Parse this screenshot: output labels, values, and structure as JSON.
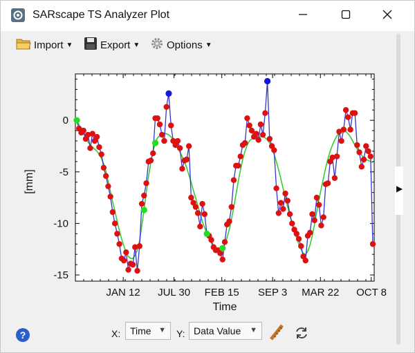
{
  "window": {
    "title": "SARscape TS Analyzer Plot",
    "controls": [
      "minimize",
      "maximize",
      "close"
    ]
  },
  "toolbar": {
    "import_label": "Import",
    "export_label": "Export",
    "options_label": "Options"
  },
  "bottom": {
    "x_label": "X:",
    "x_value": "Time",
    "y_label": "Y:",
    "y_value": "Data Value",
    "help_icon": "?"
  },
  "chart_data": {
    "type": "line",
    "xlabel": "Time",
    "ylabel": "[mm]",
    "xticks": [
      "JAN 12",
      "JUL 30",
      "FEB 15",
      "SEP 3",
      "MAR 22",
      "OCT 8"
    ],
    "yticks": [
      "0",
      "-5",
      "-10",
      "-15"
    ],
    "ylim": [
      -15.6,
      4.5
    ],
    "colors": {
      "raw": "#3333cc",
      "smooth": "#33cc33",
      "marker": "#dd1111"
    },
    "series": [
      {
        "name": "",
        "values": [
          0.0,
          -0.8,
          -1.2,
          -1.0,
          -1.8,
          -1.4,
          -2.7,
          -1.3,
          -2.0,
          -1.6,
          -2.6,
          -3.3,
          -4.6,
          -5.4,
          -6.4,
          -7.4,
          -8.9,
          -10.0,
          -11.0,
          -12.0,
          -13.4,
          -13.6,
          -12.8,
          -14.5,
          -13.9,
          -14.0,
          -12.3,
          -14.6,
          -12.2,
          -8.1,
          -7.3,
          -6.1,
          -4.0,
          -3.9,
          -3.2,
          0.2,
          0.2,
          -0.4,
          -1.4,
          -2.0,
          1.3,
          2.6,
          -0.5,
          -2.0,
          -2.4,
          -2.0,
          -2.7,
          -4.7,
          -3.9,
          -3.8,
          -2.5,
          -7.5,
          -8.0,
          -8.4,
          -9.0,
          -10.3,
          -8.1,
          -9.1,
          -11.0,
          -11.2,
          -11.6,
          -12.3,
          -12.6,
          -12.6,
          -12.9,
          -13.5,
          -11.8,
          -10.1,
          -9.8,
          -8.4,
          -5.8,
          -4.4,
          -4.4,
          -3.5,
          -2.4,
          -2.2,
          0.2,
          -0.5,
          -1.0,
          -1.6,
          -1.3,
          -1.9,
          -0.4,
          -1.4,
          0.7,
          3.8,
          -1.8,
          -2.5,
          -2.9,
          -6.6,
          -9.0,
          -8.0,
          -8.6,
          -7.1,
          -7.8,
          -9.1,
          -10.0,
          -10.6,
          -11.0,
          -11.5,
          -12.2,
          -13.2,
          -13.6,
          -11.2,
          -10.9,
          -9.1,
          -9.7,
          -7.5,
          -8.2,
          -10.2,
          -9.4,
          -6.2,
          -6.1,
          -4.0,
          -3.6,
          -5.6,
          -3.5,
          -1.1,
          -2.0,
          -0.9,
          1.0,
          0.3,
          -0.9,
          0.7,
          0.7,
          -2.4,
          -3.1,
          -4.5,
          -3.8,
          -2.5,
          -3.0,
          -3.5,
          -12.0
        ]
      },
      {
        "name": "",
        "values": [
          0.0,
          -0.4,
          -0.9,
          -1.3,
          -1.7,
          -2.1,
          -2.4,
          -2.6,
          -2.8,
          -3.0,
          -3.3,
          -3.7,
          -4.2,
          -5.0,
          -5.9,
          -6.9,
          -7.9,
          -8.8,
          -9.8,
          -10.7,
          -11.5,
          -12.2,
          -12.8,
          -13.2,
          -13.4,
          -13.4,
          -13.1,
          -12.6,
          -11.7,
          -10.2,
          -8.7,
          -7.0,
          -5.4,
          -4.1,
          -3.0,
          -2.2,
          -1.7,
          -1.5,
          -1.4,
          -1.3,
          -1.3,
          -1.4,
          -1.6,
          -1.9,
          -2.3,
          -2.7,
          -3.1,
          -3.5,
          -4.0,
          -4.6,
          -5.3,
          -6.0,
          -6.8,
          -7.5,
          -8.3,
          -9.1,
          -9.8,
          -10.4,
          -11.0,
          -11.5,
          -11.9,
          -12.2,
          -12.4,
          -12.5,
          -12.5,
          -12.4,
          -12.0,
          -11.4,
          -10.6,
          -9.6,
          -8.4,
          -7.2,
          -5.9,
          -4.8,
          -3.8,
          -3.0,
          -2.4,
          -2.0,
          -1.8,
          -1.7,
          -1.6,
          -1.6,
          -1.6,
          -1.6,
          -1.7,
          -1.9,
          -2.2,
          -2.7,
          -3.3,
          -4.0,
          -4.8,
          -5.7,
          -6.6,
          -7.5,
          -8.4,
          -9.2,
          -10.0,
          -10.7,
          -11.4,
          -12.0,
          -12.5,
          -12.9,
          -13.0,
          -12.7,
          -12.1,
          -11.2,
          -10.1,
          -8.9,
          -7.7,
          -6.6,
          -5.6,
          -4.6,
          -3.7,
          -3.0,
          -2.4,
          -1.9,
          -1.5,
          -1.2,
          -1.0,
          -1.0,
          -1.1,
          -1.3,
          -1.6,
          -2.0,
          -2.4,
          -2.8,
          -3.1,
          -3.4,
          -3.6,
          -3.8,
          -3.9,
          -4.0,
          -4.1
        ]
      }
    ],
    "highlight_points": [
      {
        "index": 0,
        "series": "smooth"
      },
      {
        "index": 30,
        "series": "smooth"
      },
      {
        "index": 35,
        "series": "smooth"
      },
      {
        "index": 58,
        "series": "smooth"
      },
      {
        "index": 65,
        "series": "smooth"
      },
      {
        "index": 85,
        "series": "raw"
      },
      {
        "index": 41,
        "series": "raw"
      }
    ]
  }
}
